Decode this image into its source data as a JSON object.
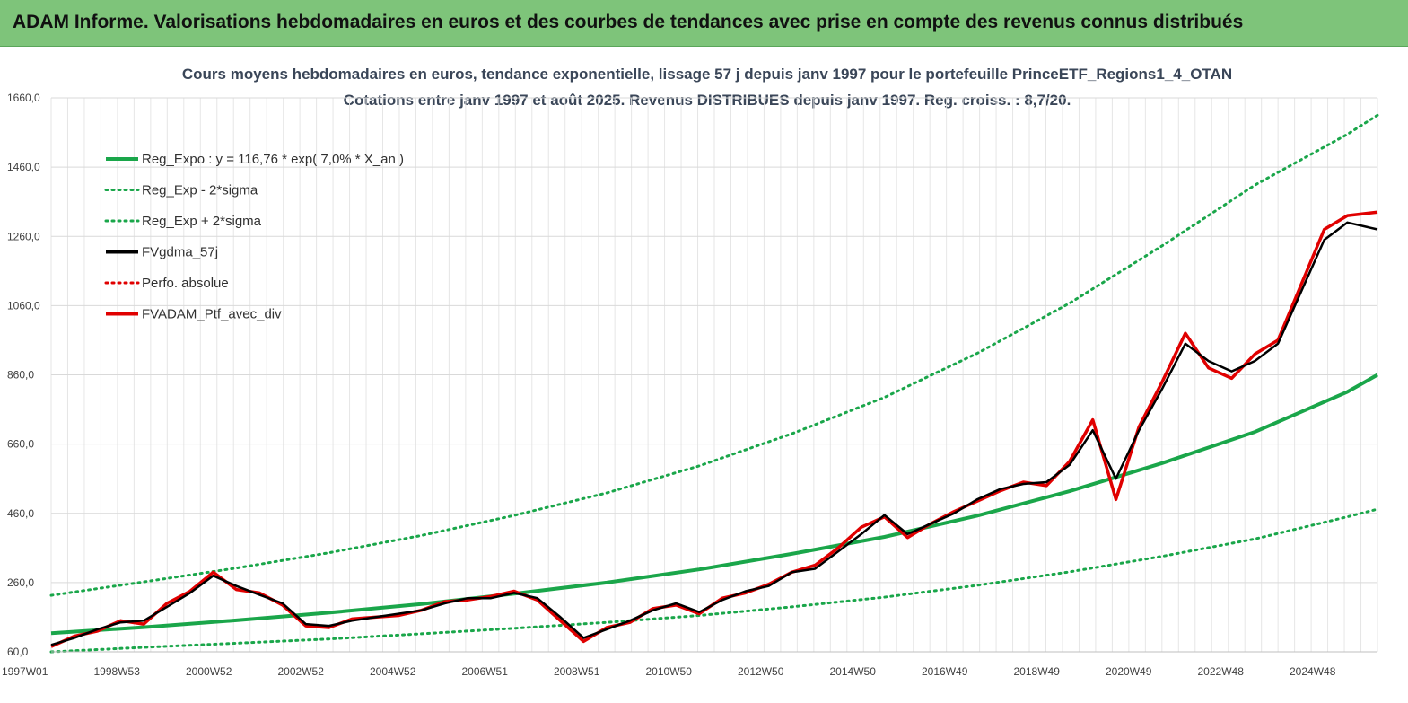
{
  "banner": {
    "title": "ADAM Informe. Valorisations hebdomadaires en euros et des courbes de tendances avec prise en compte des revenus connus distribués"
  },
  "colors": {
    "banner": "#7ec47a",
    "accent": "#f5c400",
    "trend": "#1aa64a",
    "fv": "#000000",
    "portfolio": "#e00000"
  },
  "chart_data": {
    "type": "line",
    "title": "Cours moyens hebdomadaires  en euros, tendance exponentielle, lissage 57 j depuis janv 1997 pour le portefeuille PrinceETF_Regions1_4_OTAN",
    "subtitle": "Cotations  entre janv 1997 et août 2025. Revenus DISTRIBUES depuis janv 1997. Reg. croiss. : 8,7/20.",
    "x_tick_labels": [
      "1997W01",
      "1998W53",
      "2000W52",
      "2002W52",
      "2004W52",
      "2006W51",
      "2008W51",
      "2010W50",
      "2012W50",
      "2014W50",
      "2016W49",
      "2018W49",
      "2020W49",
      "2022W48",
      "2024W48"
    ],
    "y_tick_labels": [
      "60,0",
      "260,0",
      "460,0",
      "660,0",
      "860,0",
      "1060,0",
      "1260,0",
      "1460,0",
      "1660,0"
    ],
    "ylim": [
      60,
      1660
    ],
    "xlim": [
      1997.0,
      2025.65
    ],
    "grid": true,
    "legend_position": "top-left",
    "series": [
      {
        "name": "Reg_Expo : y = 116,76 * exp( 7,0% *  X_an )",
        "style": "solid",
        "color": "#1aa64a",
        "x": [
          1997,
          1999,
          2001,
          2003,
          2005,
          2007,
          2009,
          2011,
          2013,
          2015,
          2017,
          2019,
          2021,
          2023,
          2025,
          2025.65
        ],
        "y": [
          114,
          131,
          151,
          173,
          198,
          228,
          260,
          298,
          343,
          392,
          453,
          524,
          605,
          695,
          811,
          860
        ]
      },
      {
        "name": "Reg_Exp - 2*sigma",
        "style": "dotted",
        "color": "#1aa64a",
        "x": [
          1997,
          1999,
          2001,
          2003,
          2005,
          2007,
          2009,
          2011,
          2013,
          2015,
          2017,
          2019,
          2021,
          2023,
          2025,
          2025.65
        ],
        "y": [
          60,
          73,
          85,
          97,
          112,
          128,
          145,
          165,
          190,
          218,
          252,
          291,
          336,
          386,
          450,
          472
        ]
      },
      {
        "name": "Reg_Exp + 2*sigma",
        "style": "dotted",
        "color": "#1aa64a",
        "x": [
          1997,
          1999,
          2001,
          2003,
          2005,
          2007,
          2009,
          2011,
          2013,
          2015,
          2017,
          2019,
          2021,
          2023,
          2025,
          2025.65
        ],
        "y": [
          223,
          262,
          302,
          346,
          396,
          454,
          519,
          597,
          690,
          795,
          922,
          1067,
          1233,
          1408,
          1555,
          1610
        ]
      },
      {
        "name": "FVgdma_57j",
        "style": "solid",
        "color": "#000000",
        "x": [
          1997,
          1997.5,
          1998,
          1998.5,
          1999,
          1999.5,
          2000,
          2000.5,
          2001,
          2001.5,
          2002,
          2002.5,
          2003,
          2003.5,
          2004,
          2004.5,
          2005,
          2005.5,
          2006,
          2006.5,
          2007,
          2007.5,
          2008,
          2008.5,
          2009,
          2009.5,
          2010,
          2010.5,
          2011,
          2011.5,
          2012,
          2012.5,
          2013,
          2013.5,
          2014,
          2014.5,
          2015,
          2015.5,
          2016,
          2016.5,
          2017,
          2017.5,
          2018,
          2018.5,
          2019,
          2019.5,
          2020,
          2020.5,
          2021,
          2021.5,
          2022,
          2022.5,
          2023,
          2023.5,
          2024,
          2024.5,
          2025,
          2025.65
        ],
        "y": [
          80,
          100,
          125,
          145,
          150,
          190,
          230,
          280,
          250,
          225,
          200,
          140,
          135,
          150,
          160,
          170,
          180,
          200,
          215,
          215,
          230,
          215,
          160,
          100,
          125,
          150,
          180,
          200,
          175,
          210,
          235,
          250,
          290,
          300,
          350,
          400,
          455,
          400,
          430,
          460,
          500,
          530,
          545,
          550,
          600,
          700,
          560,
          700,
          820,
          950,
          900,
          870,
          900,
          950,
          1100,
          1250,
          1300,
          1280
        ]
      },
      {
        "name": "Perfo. absolue",
        "style": "dotted",
        "color": "#e00000",
        "x": [],
        "y": []
      },
      {
        "name": "FVADAM_Ptf_avec_div",
        "style": "solid",
        "color": "#e00000",
        "x": [
          1997,
          1997.5,
          1998,
          1998.5,
          1999,
          1999.5,
          2000,
          2000.5,
          2001,
          2001.5,
          2002,
          2002.5,
          2003,
          2003.5,
          2004,
          2004.5,
          2005,
          2005.5,
          2006,
          2006.5,
          2007,
          2007.5,
          2008,
          2008.5,
          2009,
          2009.5,
          2010,
          2010.5,
          2011,
          2011.5,
          2012,
          2012.5,
          2013,
          2013.5,
          2014,
          2014.5,
          2015,
          2015.5,
          2016,
          2016.5,
          2017,
          2017.5,
          2018,
          2018.5,
          2019,
          2019.5,
          2020,
          2020.5,
          2021,
          2021.5,
          2022,
          2022.5,
          2023,
          2023.5,
          2024,
          2024.5,
          2025,
          2025.65
        ],
        "y": [
          75,
          105,
          120,
          150,
          140,
          200,
          235,
          290,
          240,
          230,
          195,
          135,
          130,
          155,
          160,
          165,
          180,
          205,
          210,
          220,
          235,
          210,
          150,
          90,
          130,
          145,
          185,
          195,
          170,
          215,
          230,
          255,
          290,
          310,
          360,
          420,
          450,
          390,
          430,
          465,
          495,
          525,
          550,
          540,
          610,
          730,
          500,
          710,
          840,
          980,
          880,
          850,
          920,
          960,
          1120,
          1280,
          1320,
          1330
        ]
      }
    ]
  }
}
